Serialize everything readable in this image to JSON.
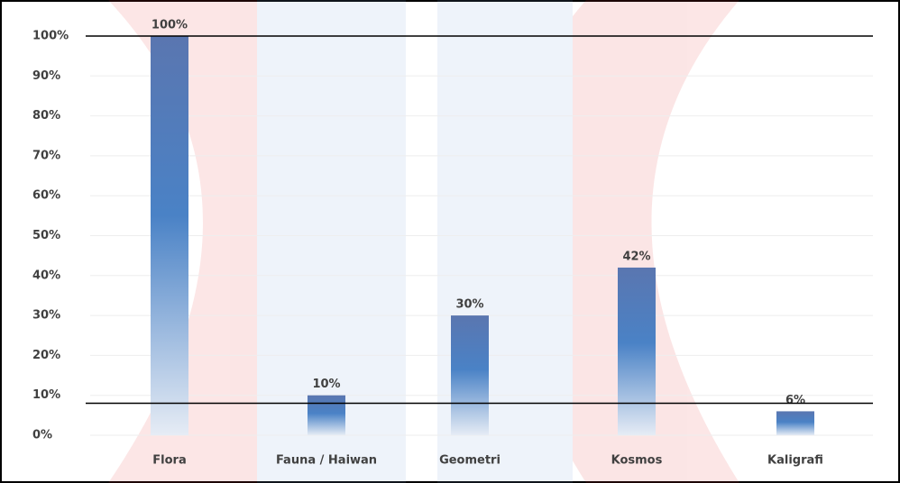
{
  "chart_data": {
    "type": "bar",
    "categories": [
      "Flora",
      "Fauna / Haiwan",
      "Geometri",
      "Kosmos",
      "Kaligrafi"
    ],
    "values": [
      100,
      10,
      30,
      42,
      6
    ],
    "value_labels": [
      "100%",
      "10%",
      "30%",
      "42%",
      "6%"
    ],
    "color": "#4a7cc0",
    "ylim": [
      0,
      100
    ],
    "yticks": [
      {
        "value": 0,
        "label": "0%"
      },
      {
        "value": 10,
        "label": "10%"
      },
      {
        "value": 20,
        "label": "20%"
      },
      {
        "value": 30,
        "label": "30%"
      },
      {
        "value": 40,
        "label": "40%"
      },
      {
        "value": 50,
        "label": "50%"
      },
      {
        "value": 60,
        "label": "60%"
      },
      {
        "value": 70,
        "label": "70%"
      },
      {
        "value": 80,
        "label": "80%"
      },
      {
        "value": 90,
        "label": "90%"
      },
      {
        "value": 100,
        "label": "100%"
      }
    ],
    "reference_lines": [
      100,
      8
    ],
    "grid": true
  }
}
